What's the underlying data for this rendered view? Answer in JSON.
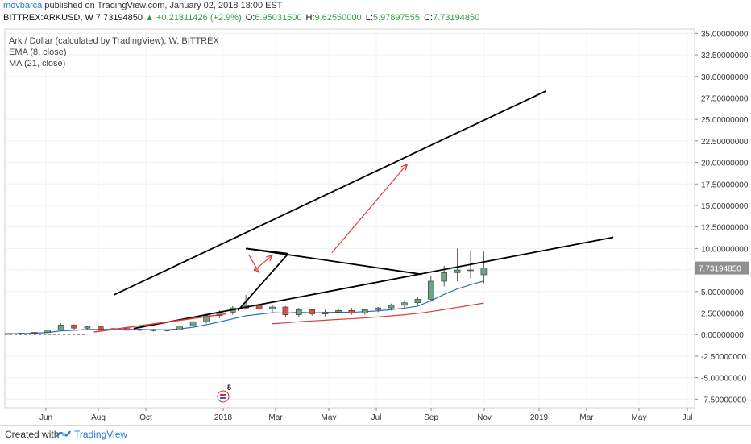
{
  "publish": {
    "author": "movbarca",
    "text": " published on TradingView.com, January 02, 2018 18:00 EST"
  },
  "header": {
    "symbol": "BITTREX:ARKUSD, W",
    "last": "7.73194850",
    "change": "+0.21811426 (+2.9%)",
    "o_label": "O:",
    "o": "6.95031500",
    "h_label": "H:",
    "h": "9.62550000",
    "l_label": "L:",
    "l": "5.97897555",
    "c_label": "C:",
    "c": "7.73194850"
  },
  "legend": {
    "title": "Ark / Dollar (calculated by TradingView), W, BITTREX",
    "ema": "EMA (8, close)",
    "ma": "MA (21, close)"
  },
  "price_label": "7.73194850",
  "event_marker": "5",
  "footer": {
    "created": "Created with",
    "brand": "TradingView"
  },
  "chart_data": {
    "type": "candlestick",
    "x_labels": [
      "Jun",
      "Aug",
      "Oct",
      "2018",
      "Mar",
      "May",
      "Jul",
      "Sep",
      "Nov",
      "2019",
      "Mar",
      "May",
      "Jul"
    ],
    "y_ticks": [
      "35.00000000",
      "32.50000000",
      "30.00000000",
      "27.50000000",
      "25.00000000",
      "22.50000000",
      "20.00000000",
      "17.50000000",
      "15.00000000",
      "12.50000000",
      "10.00000000",
      "7.50000000",
      "5.00000000",
      "2.50000000",
      "0.00000000",
      "-2.50000000",
      "-5.00000000",
      "-7.50000000"
    ],
    "ylim": [
      -8.5,
      35.5
    ],
    "colors": {
      "up": "#6ba583",
      "down": "#d75442",
      "ema": "#2f6fb0",
      "ma": "#e03a3a",
      "trend": "#000000",
      "arrow": "#e03a3a"
    },
    "candles": [
      {
        "o": 0.1,
        "h": 0.14,
        "l": 0.08,
        "c": 0.12
      },
      {
        "o": 0.12,
        "h": 0.2,
        "l": 0.1,
        "c": 0.18
      },
      {
        "o": 0.18,
        "h": 0.3,
        "l": 0.15,
        "c": 0.25
      },
      {
        "o": 0.25,
        "h": 0.6,
        "l": 0.22,
        "c": 0.55
      },
      {
        "o": 0.55,
        "h": 1.3,
        "l": 0.5,
        "c": 1.1
      },
      {
        "o": 1.1,
        "h": 1.2,
        "l": 0.6,
        "c": 0.75
      },
      {
        "o": 0.75,
        "h": 1.0,
        "l": 0.6,
        "c": 0.9
      },
      {
        "o": 0.9,
        "h": 0.95,
        "l": 0.55,
        "c": 0.6
      },
      {
        "o": 0.6,
        "h": 0.8,
        "l": 0.45,
        "c": 0.7
      },
      {
        "o": 0.7,
        "h": 0.75,
        "l": 0.4,
        "c": 0.5
      },
      {
        "o": 0.5,
        "h": 0.7,
        "l": 0.4,
        "c": 0.6
      },
      {
        "o": 0.6,
        "h": 0.65,
        "l": 0.35,
        "c": 0.45
      },
      {
        "o": 0.45,
        "h": 0.6,
        "l": 0.35,
        "c": 0.55
      },
      {
        "o": 0.55,
        "h": 1.1,
        "l": 0.5,
        "c": 1.0
      },
      {
        "o": 1.0,
        "h": 1.6,
        "l": 0.9,
        "c": 1.5
      },
      {
        "o": 1.5,
        "h": 2.4,
        "l": 1.3,
        "c": 2.2
      },
      {
        "o": 2.2,
        "h": 2.8,
        "l": 1.9,
        "c": 2.6
      },
      {
        "o": 2.6,
        "h": 3.3,
        "l": 2.3,
        "c": 3.1
      },
      {
        "o": 3.1,
        "h": 4.6,
        "l": 2.9,
        "c": 3.4
      },
      {
        "o": 3.4,
        "h": 3.6,
        "l": 2.7,
        "c": 3.0
      },
      {
        "o": 3.0,
        "h": 3.4,
        "l": 2.6,
        "c": 3.2
      },
      {
        "o": 3.2,
        "h": 3.3,
        "l": 2.0,
        "c": 2.3
      },
      {
        "o": 2.3,
        "h": 3.1,
        "l": 2.0,
        "c": 2.9
      },
      {
        "o": 2.9,
        "h": 3.0,
        "l": 2.2,
        "c": 2.4
      },
      {
        "o": 2.4,
        "h": 2.9,
        "l": 2.1,
        "c": 2.6
      },
      {
        "o": 2.6,
        "h": 3.0,
        "l": 2.4,
        "c": 2.8
      },
      {
        "o": 2.8,
        "h": 3.1,
        "l": 2.3,
        "c": 2.5
      },
      {
        "o": 2.5,
        "h": 3.0,
        "l": 2.3,
        "c": 2.9
      },
      {
        "o": 2.9,
        "h": 3.2,
        "l": 2.6,
        "c": 3.1
      },
      {
        "o": 3.1,
        "h": 3.6,
        "l": 2.8,
        "c": 3.4
      },
      {
        "o": 3.4,
        "h": 4.0,
        "l": 3.1,
        "c": 3.7
      },
      {
        "o": 3.7,
        "h": 4.4,
        "l": 3.5,
        "c": 4.1
      },
      {
        "o": 4.1,
        "h": 6.8,
        "l": 3.8,
        "c": 6.2
      },
      {
        "o": 6.2,
        "h": 8.0,
        "l": 5.6,
        "c": 7.2
      },
      {
        "o": 7.2,
        "h": 10.0,
        "l": 6.2,
        "c": 7.5
      },
      {
        "o": 7.5,
        "h": 9.8,
        "l": 6.5,
        "c": 7.51
      },
      {
        "o": 6.95,
        "h": 9.63,
        "l": 5.98,
        "c": 7.73
      }
    ],
    "ema": [
      0.1,
      0.12,
      0.15,
      0.24,
      0.43,
      0.5,
      0.59,
      0.59,
      0.62,
      0.59,
      0.59,
      0.56,
      0.56,
      0.66,
      0.85,
      1.15,
      1.47,
      1.83,
      2.18,
      2.36,
      2.54,
      2.49,
      2.58,
      2.54,
      2.55,
      2.61,
      2.59,
      2.66,
      2.76,
      2.9,
      3.08,
      3.3,
      3.94,
      4.67,
      5.3,
      5.79,
      6.22
    ],
    "ma": [
      null,
      null,
      null,
      null,
      null,
      null,
      null,
      null,
      null,
      null,
      null,
      null,
      null,
      null,
      null,
      null,
      null,
      null,
      null,
      null,
      1.26,
      1.36,
      1.49,
      1.58,
      1.67,
      1.76,
      1.84,
      1.94,
      2.05,
      2.17,
      2.3,
      2.46,
      2.67,
      2.91,
      3.16,
      3.41,
      3.66
    ],
    "trendlines": [
      {
        "x1": 8.0,
        "y1": 4.6,
        "x2": 40.7,
        "y2": 28.3
      },
      {
        "x1": 18.0,
        "y1": 10.0,
        "x2": 31.3,
        "y2": 7.0
      },
      {
        "x1": 17.4,
        "y1": 2.8,
        "x2": 21.2,
        "y2": 9.4
      },
      {
        "x1": 9.5,
        "y1": 0.7,
        "x2": 45.8,
        "y2": 11.3
      },
      {
        "x1": 18.0,
        "y1": 10.0,
        "x2": 21.2,
        "y2": 9.4
      }
    ],
    "arrows": [
      {
        "x1": 24.5,
        "y1": 9.5,
        "x2": 30.2,
        "y2": 19.8
      },
      {
        "x1": 18.2,
        "y1": 9.3,
        "x2": 19.0,
        "y2": 7.2
      },
      {
        "x1": 18.6,
        "y1": 7.4,
        "x2": 20.0,
        "y2": 9.2
      }
    ],
    "red_line": {
      "x1": 6.5,
      "y1": 0.3,
      "x2": 16.5,
      "y2": 2.4
    }
  }
}
